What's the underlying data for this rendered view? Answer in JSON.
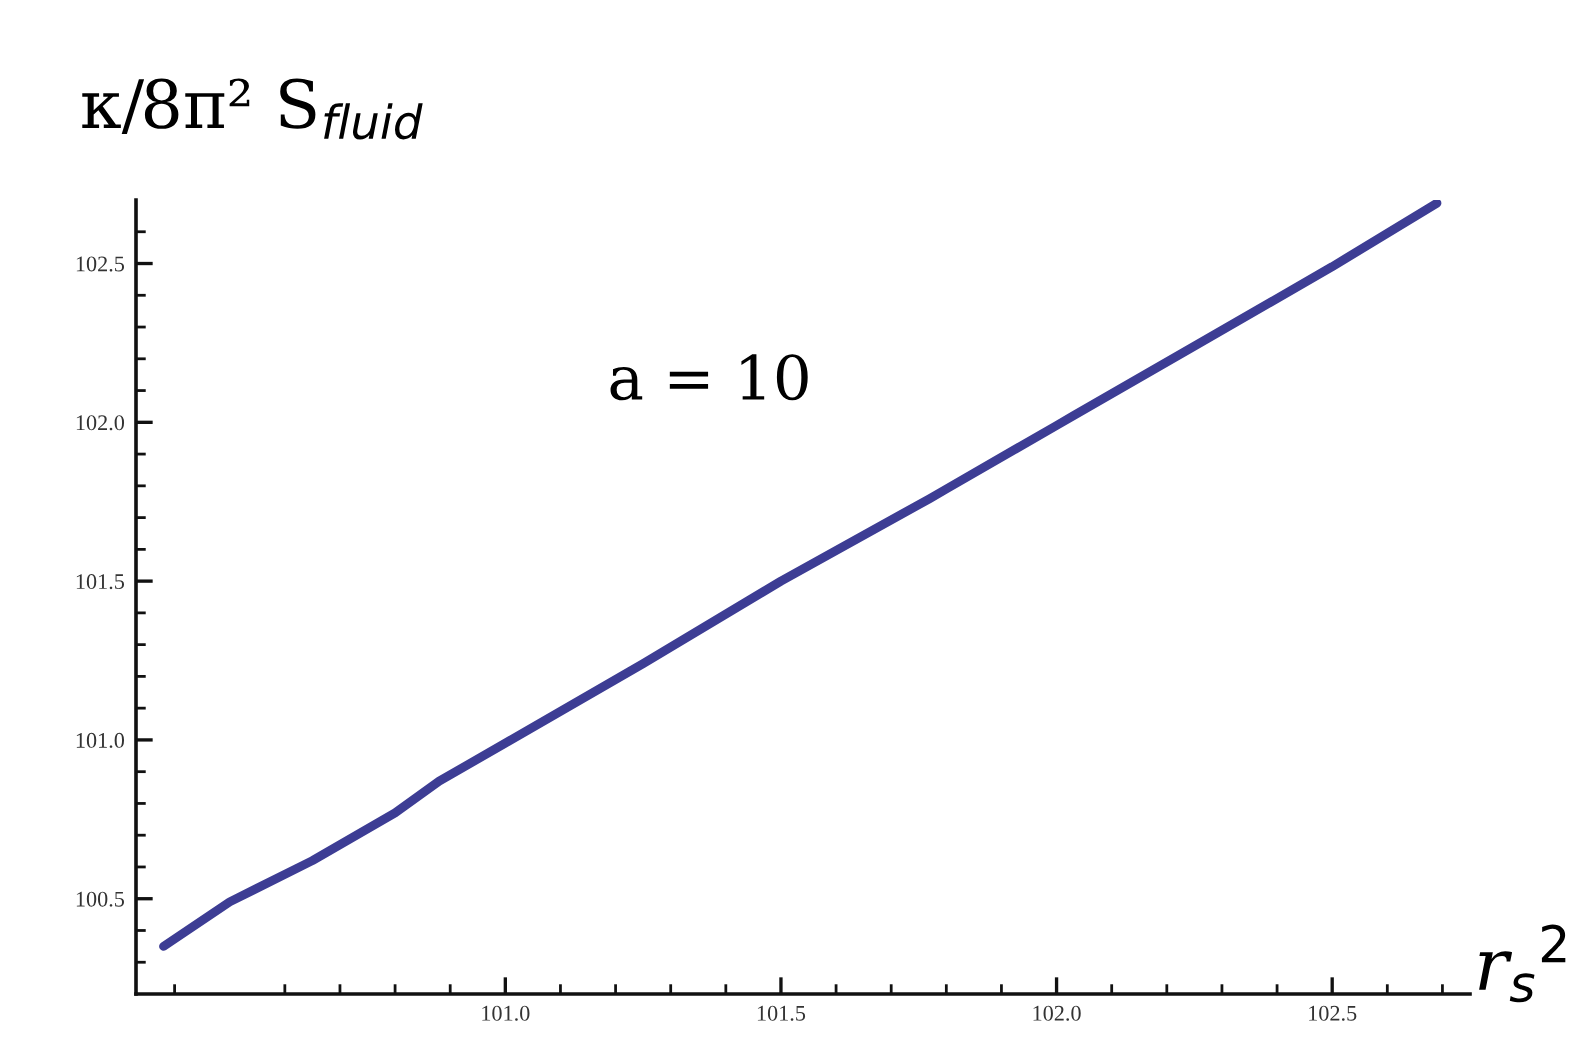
{
  "chart_data": {
    "type": "line",
    "ylabel": "κ/8π² S$_{fluid}$",
    "xlabel": "r$_{s}$$^{2}$",
    "annotations": [
      "a = 10"
    ],
    "series": [
      {
        "color": "#3d3d94",
        "x": [
          100.38,
          100.5,
          100.65,
          100.8,
          100.88,
          101.0,
          101.25,
          101.5,
          101.77,
          101.8,
          102.0,
          102.03,
          102.25,
          102.5,
          102.69
        ],
        "values": [
          100.35,
          100.49,
          100.62,
          100.77,
          100.87,
          100.99,
          101.24,
          101.5,
          101.76,
          101.79,
          101.99,
          102.02,
          102.24,
          102.49,
          102.69
        ]
      }
    ],
    "xlim": [
      100.33,
      102.75
    ],
    "ylim": [
      100.2,
      102.7
    ],
    "xticks": [
      {
        "value": 100.4,
        "label": null
      },
      {
        "value": 100.6,
        "label": null
      },
      {
        "value": 100.7,
        "label": null
      },
      {
        "value": 100.8,
        "label": null
      },
      {
        "value": 100.9,
        "label": null
      },
      {
        "value": 101,
        "label": "101.0"
      },
      {
        "value": 101.1,
        "label": null
      },
      {
        "value": 101.2,
        "label": null
      },
      {
        "value": 101.3,
        "label": null
      },
      {
        "value": 101.4,
        "label": null
      },
      {
        "value": 101.5,
        "label": "101.5"
      },
      {
        "value": 101.6,
        "label": null
      },
      {
        "value": 101.7,
        "label": null
      },
      {
        "value": 101.8,
        "label": null
      },
      {
        "value": 101.9,
        "label": null
      },
      {
        "value": 102,
        "label": "102.0"
      },
      {
        "value": 102.1,
        "label": null
      },
      {
        "value": 102.2,
        "label": null
      },
      {
        "value": 102.3,
        "label": null
      },
      {
        "value": 102.4,
        "label": null
      },
      {
        "value": 102.5,
        "label": "102.5"
      },
      {
        "value": 102.6,
        "label": null
      },
      {
        "value": 102.7,
        "label": null
      }
    ],
    "yticks": [
      {
        "value": 100.3,
        "label": null
      },
      {
        "value": 100.4,
        "label": null
      },
      {
        "value": 100.5,
        "label": "100.5"
      },
      {
        "value": 100.6,
        "label": null
      },
      {
        "value": 100.7,
        "label": null
      },
      {
        "value": 100.8,
        "label": null
      },
      {
        "value": 100.9,
        "label": null
      },
      {
        "value": 101,
        "label": "101.0"
      },
      {
        "value": 101.1,
        "label": null
      },
      {
        "value": 101.2,
        "label": null
      },
      {
        "value": 101.3,
        "label": null
      },
      {
        "value": 101.4,
        "label": null
      },
      {
        "value": 101.5,
        "label": "101.5"
      },
      {
        "value": 101.6,
        "label": null
      },
      {
        "value": 101.7,
        "label": null
      },
      {
        "value": 101.8,
        "label": null
      },
      {
        "value": 101.9,
        "label": null
      },
      {
        "value": 102,
        "label": "102.0"
      },
      {
        "value": 102.1,
        "label": null
      },
      {
        "value": 102.2,
        "label": null
      },
      {
        "value": 102.3,
        "label": null
      },
      {
        "value": 102.4,
        "label": null
      },
      {
        "value": 102.5,
        "label": "102.5"
      },
      {
        "value": 102.6,
        "label": null
      }
    ]
  }
}
